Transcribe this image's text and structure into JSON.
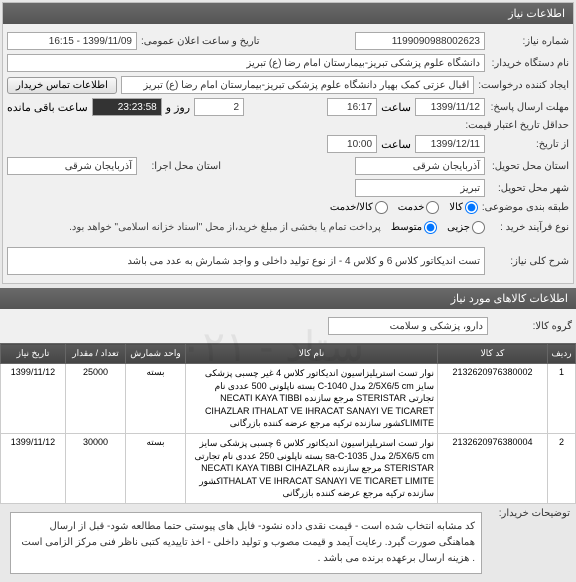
{
  "header": {
    "title": "اطلاعات نیاز"
  },
  "contact_btn": "اطلاعات تماس خریدار",
  "form": {
    "need_no_label": "شماره نیاز:",
    "need_no": "1199090988002623",
    "public_time_label": "تاریخ و ساعت اعلان عمومی:",
    "public_time": "1399/11/09 - 16:15",
    "buyer_org_label": "نام دستگاه خریدار:",
    "buyer_org": "دانشگاه علوم پزشکی تبریز-بیمارستان امام رضا (ع) تبریز",
    "creator_label": "ایجاد کننده درخواست:",
    "creator": "اقبال عزتی کمک بهیار دانشگاه علوم پزشکی تبریز-بیمارستان امام رضا (ع) تبریز",
    "deadline_label": "مهلت ارسال پاسخ:",
    "deadline_date": "1399/11/12",
    "hour_label": "ساعت",
    "deadline_hour": "16:17",
    "days_label": "روز و",
    "days": "2",
    "countdown": "23:23:58",
    "remaining": "ساعت باقی مانده",
    "valid_label": "حداقل تاریخ اعتبار قیمت:",
    "delivery_label": "از تاریخ:",
    "delivery_date": "1399/12/11",
    "delivery_hour": "10:00",
    "prov_exec_label": "استان محل اجرا:",
    "prov_exec": "آذربایجان شرقی",
    "prov_deliv_label": "استان محل تحویل:",
    "prov_deliv": "آذربایجان شرقی",
    "city_label": "شهر محل تحویل:",
    "city": "تبریز",
    "category_label": "طبقه بندی موضوعی:",
    "radios": {
      "goods": "کالا",
      "service": "خدمت",
      "goods_service": "کالا/خدمت"
    },
    "buy_type_label": "نوع فرآیند خرید :",
    "buy_types": {
      "small": "جزیی",
      "medium": "متوسط"
    },
    "buy_note": "پرداخت تمام یا بخشی از مبلغ خرید،از محل \"اسناد خزانه اسلامی\" خواهد بود.",
    "desc_label": "شرح کلی نیاز:",
    "desc": "تست اندیکاتور کلاس 6  و کلاس 4 - از نوع تولید داخلی و واجد شمارش به عدد می باشد"
  },
  "items_header": "اطلاعات کالاهای مورد نیاز",
  "group_label": "گروه کالا:",
  "group_value": "دارو، پزشکی و سلامت",
  "table": {
    "cols": [
      "ردیف",
      "کد کالا",
      "نام کالا",
      "واحد شمارش",
      "تعداد / مقدار",
      "تاریخ نیاز"
    ],
    "rows": [
      {
        "n": "1",
        "code": "2132620976380002",
        "name": "نوار تست استریلیزاسیون اندیکاتور کلاس 4 غیر چسبی پزشکی سایز 2/5X6/5 cm مدل C-1040 بسته ناپلونی 500 عددی نام تجارتی STERISTAR مرجع سازنده NECATI KAYA TIBBI CIHAZLAR ITHALAT VE IHRACAT SANAYI VE TICARET LIMITEکشور سازنده ترکیه مرجع عرضه کننده بازرگانی",
        "unit": "بسته",
        "qty": "25000",
        "date": "1399/11/12"
      },
      {
        "n": "2",
        "code": "2132620976380004",
        "name": "نوار تست استریلیزاسیون اندیکاتور کلاس 6 چسبی پزشکی سایز 2/5X6/5 cm مدل sa-C-1035 بسته ناپلونی 250 عددی نام تجارتی STERISTAR مرجع سازنده NECATI KAYA TIBBI CIHAZLAR ITHALAT VE IHRACAT SANAYI VE TICARET LIMITEکشور سازنده ترکیه مرجع عرضه کننده بازرگانی",
        "unit": "بسته",
        "qty": "30000",
        "date": "1399/11/12"
      }
    ]
  },
  "buyer_note_label": "توضیحات خریدار:",
  "buyer_note": "کد مشابه انتخاب شده است - قیمت نقدی داده نشود- فایل های پیوستی حتما مطالعه شود- قبل از ارسال هماهنگی صورت گیرد. رعایت آیمد و قیمت مصوب و تولید داخلی -  اخذ تاییدیه کتبی ناظر فنی مرکز الزامی است . هزینه ارسال برعهده برنده می باشد .",
  "watermark": "ستاد - ۰۲۱"
}
